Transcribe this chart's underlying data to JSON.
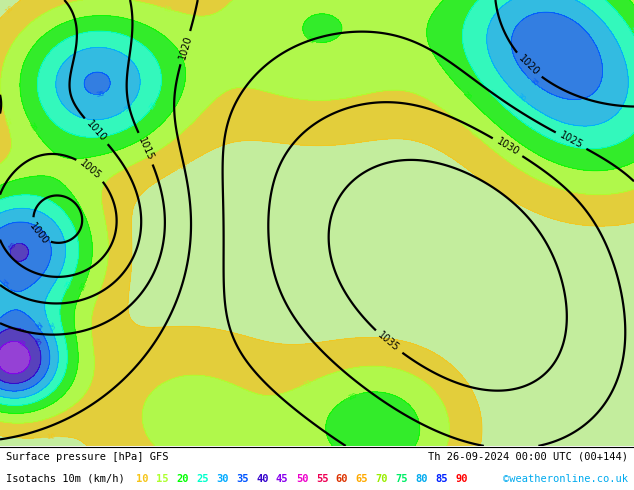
{
  "title_left": "Surface pressure [hPa] GFS",
  "title_right": "Th 26-09-2024 00:00 UTC (00+144)",
  "subtitle_left": "Isotachs 10m (km/h)",
  "credit": "©weatheronline.co.uk",
  "legend_values": [
    10,
    15,
    20,
    25,
    30,
    35,
    40,
    45,
    50,
    55,
    60,
    65,
    70,
    75,
    80,
    85,
    90
  ],
  "legend_color_list": [
    "#f5c518",
    "#adff2f",
    "#00ff00",
    "#00ffcc",
    "#00aaff",
    "#0055ff",
    "#3300cc",
    "#8800ee",
    "#ee00cc",
    "#ee0055",
    "#dd3300",
    "#ffaa00",
    "#99ee00",
    "#00ee66",
    "#00aaee",
    "#0022ff",
    "#ff0000"
  ],
  "wind_fill_colors": [
    "#c8f0a0",
    "#f5c518",
    "#adff2f",
    "#00ee00",
    "#00ffcc",
    "#00aaff",
    "#0055ff",
    "#3300cc",
    "#8800ee",
    "#ee00cc",
    "#ee0055",
    "#dd3300",
    "#ffaa00",
    "#99ee00",
    "#00ee66",
    "#00aaee",
    "#0022ff",
    "#ff0000"
  ],
  "wind_levels": [
    0,
    10,
    15,
    20,
    25,
    30,
    35,
    40,
    45,
    50,
    55,
    60,
    65,
    70,
    75,
    80,
    85,
    90,
    150
  ],
  "pressure_levels": [
    990,
    995,
    1000,
    1005,
    1010,
    1015,
    1020,
    1025,
    1030,
    1035
  ],
  "map_bg": "#b8e896",
  "fig_width": 6.34,
  "fig_height": 4.9,
  "dpi": 100
}
